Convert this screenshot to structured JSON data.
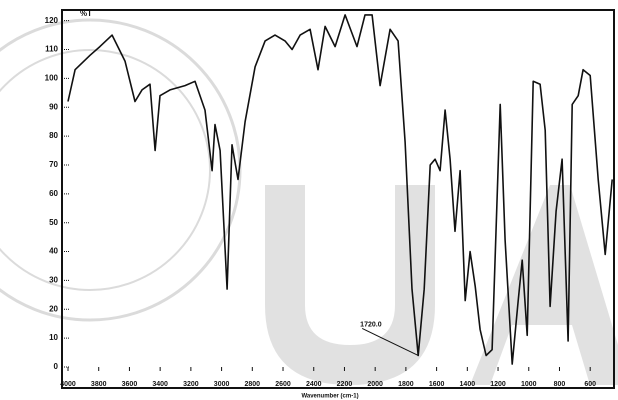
{
  "chart_data": {
    "type": "line",
    "y_label": "%T",
    "x_label": "Wavenumber (cm-1)",
    "annotation": "1720.0",
    "annotation_x": 1720,
    "annotation_y": 4,
    "x": [
      4000,
      3954,
      3857,
      3792,
      3713,
      3629,
      3564,
      3518,
      3466,
      3433,
      3401,
      3336,
      3238,
      3173,
      3108,
      3062,
      3043,
      3010,
      2964,
      2932,
      2893,
      2847,
      2782,
      2717,
      2652,
      2587,
      2541,
      2489,
      2424,
      2372,
      2326,
      2261,
      2196,
      2118,
      2066,
      2020,
      1968,
      1903,
      1851,
      1805,
      1760,
      1720,
      1681,
      1642,
      1610,
      1577,
      1545,
      1512,
      1480,
      1447,
      1414,
      1382,
      1349,
      1317,
      1278,
      1239,
      1186,
      1154,
      1108,
      1069,
      1043,
      1010,
      971,
      926,
      893,
      861,
      822,
      783,
      744,
      717,
      678,
      646,
      600,
      548,
      502,
      457
    ],
    "series": [
      {
        "color": "#111111",
        "values": [
          92,
          103,
          108,
          111,
          115,
          106,
          92,
          96,
          98,
          75,
          94,
          96,
          97.5,
          99,
          89,
          68,
          84,
          75,
          27,
          77,
          65,
          85,
          104,
          113,
          115,
          113,
          110,
          115,
          117,
          103,
          118,
          111,
          122,
          111,
          122,
          122,
          97.5,
          117,
          113,
          78,
          27,
          4,
          27,
          70,
          72,
          68,
          89,
          72,
          47,
          68,
          23,
          40,
          28,
          13,
          4,
          6,
          91,
          44,
          1,
          23,
          37,
          11,
          99,
          98,
          82,
          21,
          54,
          72,
          9,
          91,
          94,
          103,
          101,
          65,
          39,
          65
        ]
      }
    ],
    "xlim": [
      4000,
      445
    ],
    "ylim": [
      0,
      123
    ],
    "xticks": [
      4000,
      3800,
      3600,
      3400,
      3200,
      3000,
      2800,
      2600,
      2400,
      2200,
      2000,
      1800,
      1600,
      1400,
      1200,
      1000,
      800,
      600
    ],
    "yticks": [
      0,
      10,
      20,
      30,
      40,
      50,
      60,
      70,
      80,
      90,
      100,
      110,
      120
    ]
  }
}
